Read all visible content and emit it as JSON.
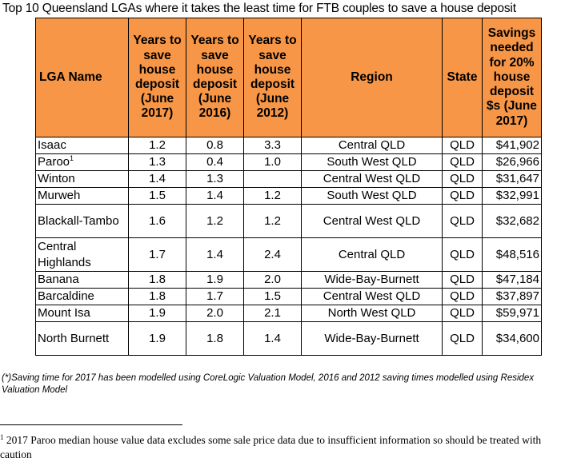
{
  "title": "Top 10 Queensland LGAs where it takes the least time for FTB couples to save a house deposit",
  "table": {
    "headers": {
      "lga": "LGA Name",
      "y2017": "Years to save house deposit (June 2017)",
      "y2016": "Years to save house deposit (June 2016)",
      "y2012": "Years to save house deposit (June 2012)",
      "region": "Region",
      "state": "State",
      "savings": "Savings needed for 20% house deposit $s (June 2017)"
    },
    "rows": [
      {
        "lga": "Isaac",
        "sup": "",
        "y2017": "1.2",
        "y2016": "0.8",
        "y2012": "3.3",
        "region": "Central QLD",
        "state": "QLD",
        "savings": "$41,902"
      },
      {
        "lga": "Paroo",
        "sup": "1",
        "y2017": "1.3",
        "y2016": "0.4",
        "y2012": "1.0",
        "region": "South West QLD",
        "state": "QLD",
        "savings": "$26,966"
      },
      {
        "lga": "Winton",
        "sup": "",
        "y2017": "1.4",
        "y2016": "1.3",
        "y2012": "",
        "region": "Central West QLD",
        "state": "QLD",
        "savings": "$31,647"
      },
      {
        "lga": "Murweh",
        "sup": "",
        "y2017": "1.5",
        "y2016": "1.4",
        "y2012": "1.2",
        "region": "South West QLD",
        "state": "QLD",
        "savings": "$32,991"
      },
      {
        "lga": "Blackall-Tambo",
        "sup": "",
        "y2017": "1.6",
        "y2016": "1.2",
        "y2012": "1.2",
        "region": "Central West QLD",
        "state": "QLD",
        "savings": "$32,682"
      },
      {
        "lga": "Central Highlands",
        "sup": "",
        "y2017": "1.7",
        "y2016": "1.4",
        "y2012": "2.4",
        "region": "Central QLD",
        "state": "QLD",
        "savings": "$48,516"
      },
      {
        "lga": "Banana",
        "sup": "",
        "y2017": "1.8",
        "y2016": "1.9",
        "y2012": "2.0",
        "region": "Wide-Bay-Burnett",
        "state": "QLD",
        "savings": "$47,184"
      },
      {
        "lga": "Barcaldine",
        "sup": "",
        "y2017": "1.8",
        "y2016": "1.7",
        "y2012": "1.5",
        "region": "Central West QLD",
        "state": "QLD",
        "savings": "$37,897"
      },
      {
        "lga": "Mount Isa",
        "sup": "",
        "y2017": "1.9",
        "y2016": "2.0",
        "y2012": "2.1",
        "region": "North West QLD",
        "state": "QLD",
        "savings": "$59,971"
      },
      {
        "lga": "North Burnett",
        "sup": "",
        "y2017": "1.9",
        "y2016": "1.8",
        "y2012": "1.4",
        "region": "Wide-Bay-Burnett",
        "state": "QLD",
        "savings": "$34,600"
      }
    ]
  },
  "note": "(*)Saving time for 2017 has been modelled using CoreLogic Valuation Model, 2016 and 2012 saving times modelled using Residex Valuation Model",
  "footnote": {
    "marker": "1",
    "text": " 2017 Paroo median house value data excludes some sale price data due to insufficient information so should be treated with caution"
  },
  "colors": {
    "header_fill": "#f79646"
  }
}
